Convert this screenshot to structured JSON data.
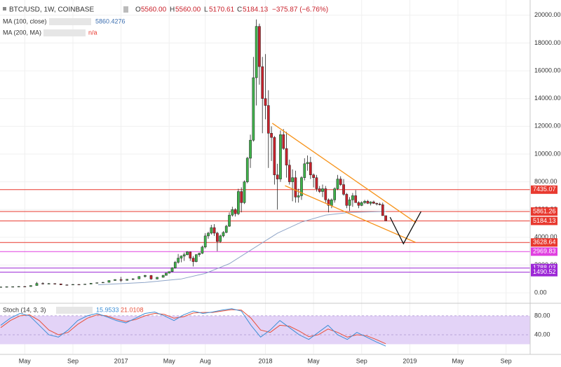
{
  "chart_data": {
    "type": "candlestick",
    "header": {
      "symbol": "BTC/USD, 1W, COINBASE",
      "o_label": "O",
      "o": "5560.00",
      "h_label": "H",
      "h": "5560.00",
      "l_label": "L",
      "l": "5170.61",
      "c_label": "C",
      "c": "5184.13",
      "change": "−375.87 (−6.76%)"
    },
    "xlim": [
      2,
      46
    ],
    "ylim": [
      -700,
      21100
    ],
    "xticks": [
      {
        "value": 4,
        "label": "May"
      },
      {
        "value": 8,
        "label": "Sep"
      },
      {
        "value": 12,
        "label": "2017"
      },
      {
        "value": 16,
        "label": "May"
      },
      {
        "value": 19,
        "label": "Aug"
      },
      {
        "value": 24,
        "label": "2018"
      },
      {
        "value": 28,
        "label": "May"
      },
      {
        "value": 32,
        "label": "Sep"
      },
      {
        "value": 36,
        "label": "2019"
      },
      {
        "value": 40,
        "label": "May"
      },
      {
        "value": 44,
        "label": "Sep"
      }
    ],
    "yticks": [
      {
        "value": 0,
        "label": "0.00"
      },
      {
        "value": 2000,
        "label": "2000.00"
      },
      {
        "value": 4000,
        "label": "4000.00"
      },
      {
        "value": 6000,
        "label": "6000.00"
      },
      {
        "value": 8000,
        "label": "8000.00"
      },
      {
        "value": 10000,
        "label": "10000.00"
      },
      {
        "value": 12000,
        "label": "12000.00"
      },
      {
        "value": 14000,
        "label": "14000.00"
      },
      {
        "value": 16000,
        "label": "16000.00"
      },
      {
        "value": 18000,
        "label": "18000.00"
      },
      {
        "value": 20000,
        "label": "20000.00"
      }
    ],
    "grid": true,
    "up_color": "#3fb14a",
    "down_color": "#c9222c",
    "candles": [
      {
        "x": 2.0,
        "o": 420,
        "h": 440,
        "l": 410,
        "c": 430
      },
      {
        "x": 2.5,
        "o": 430,
        "h": 450,
        "l": 420,
        "c": 445
      },
      {
        "x": 3.0,
        "o": 445,
        "h": 460,
        "l": 430,
        "c": 450
      },
      {
        "x": 3.5,
        "o": 450,
        "h": 470,
        "l": 440,
        "c": 460
      },
      {
        "x": 4.0,
        "o": 460,
        "h": 480,
        "l": 440,
        "c": 455
      },
      {
        "x": 4.5,
        "o": 455,
        "h": 540,
        "l": 450,
        "c": 530
      },
      {
        "x": 5.0,
        "o": 530,
        "h": 780,
        "l": 520,
        "c": 680
      },
      {
        "x": 5.5,
        "o": 680,
        "h": 760,
        "l": 600,
        "c": 650
      },
      {
        "x": 6.0,
        "o": 650,
        "h": 700,
        "l": 620,
        "c": 670
      },
      {
        "x": 6.5,
        "o": 670,
        "h": 680,
        "l": 600,
        "c": 650
      },
      {
        "x": 7.0,
        "o": 650,
        "h": 660,
        "l": 560,
        "c": 580
      },
      {
        "x": 7.5,
        "o": 580,
        "h": 600,
        "l": 560,
        "c": 575
      },
      {
        "x": 8.0,
        "o": 575,
        "h": 620,
        "l": 570,
        "c": 610
      },
      {
        "x": 8.5,
        "o": 610,
        "h": 620,
        "l": 590,
        "c": 605
      },
      {
        "x": 9.0,
        "o": 605,
        "h": 640,
        "l": 600,
        "c": 630
      },
      {
        "x": 9.5,
        "o": 630,
        "h": 700,
        "l": 620,
        "c": 690
      },
      {
        "x": 10.0,
        "o": 690,
        "h": 740,
        "l": 680,
        "c": 730
      },
      {
        "x": 10.5,
        "o": 730,
        "h": 780,
        "l": 720,
        "c": 760
      },
      {
        "x": 11.0,
        "o": 760,
        "h": 900,
        "l": 740,
        "c": 890
      },
      {
        "x": 11.5,
        "o": 890,
        "h": 980,
        "l": 880,
        "c": 960
      },
      {
        "x": 12.0,
        "o": 960,
        "h": 1150,
        "l": 780,
        "c": 900
      },
      {
        "x": 12.5,
        "o": 900,
        "h": 1000,
        "l": 880,
        "c": 980
      },
      {
        "x": 13.0,
        "o": 980,
        "h": 1050,
        "l": 920,
        "c": 1010
      },
      {
        "x": 13.5,
        "o": 1010,
        "h": 1200,
        "l": 990,
        "c": 1180
      },
      {
        "x": 14.0,
        "o": 1180,
        "h": 1300,
        "l": 1100,
        "c": 1250
      },
      {
        "x": 14.5,
        "o": 1250,
        "h": 1280,
        "l": 950,
        "c": 1000
      },
      {
        "x": 15.0,
        "o": 1000,
        "h": 1150,
        "l": 980,
        "c": 1120
      },
      {
        "x": 15.5,
        "o": 1120,
        "h": 1300,
        "l": 1100,
        "c": 1260
      },
      {
        "x": 15.75,
        "o": 1260,
        "h": 1450,
        "l": 1240,
        "c": 1420
      },
      {
        "x": 16.0,
        "o": 1420,
        "h": 1550,
        "l": 1400,
        "c": 1530
      },
      {
        "x": 16.25,
        "o": 1530,
        "h": 1850,
        "l": 1500,
        "c": 1800
      },
      {
        "x": 16.5,
        "o": 1800,
        "h": 2300,
        "l": 1750,
        "c": 2200
      },
      {
        "x": 16.75,
        "o": 2200,
        "h": 2800,
        "l": 2100,
        "c": 2500
      },
      {
        "x": 17.0,
        "o": 2500,
        "h": 2700,
        "l": 2200,
        "c": 2650
      },
      {
        "x": 17.25,
        "o": 2650,
        "h": 2900,
        "l": 2300,
        "c": 2750
      },
      {
        "x": 17.5,
        "o": 2750,
        "h": 3000,
        "l": 2700,
        "c": 2950
      },
      {
        "x": 17.75,
        "o": 2950,
        "h": 2980,
        "l": 2300,
        "c": 2500
      },
      {
        "x": 18.0,
        "o": 2500,
        "h": 2650,
        "l": 1900,
        "c": 2250
      },
      {
        "x": 18.25,
        "o": 2250,
        "h": 2800,
        "l": 2200,
        "c": 2750
      },
      {
        "x": 18.5,
        "o": 2750,
        "h": 2900,
        "l": 2600,
        "c": 2850
      },
      {
        "x": 18.75,
        "o": 2850,
        "h": 3400,
        "l": 2800,
        "c": 3300
      },
      {
        "x": 19.0,
        "o": 3300,
        "h": 4300,
        "l": 3200,
        "c": 4100
      },
      {
        "x": 19.25,
        "o": 4100,
        "h": 4400,
        "l": 3900,
        "c": 4300
      },
      {
        "x": 19.5,
        "o": 4300,
        "h": 4900,
        "l": 4200,
        "c": 4700
      },
      {
        "x": 19.75,
        "o": 4700,
        "h": 4950,
        "l": 4100,
        "c": 4300
      },
      {
        "x": 20.0,
        "o": 4300,
        "h": 4400,
        "l": 3000,
        "c": 3700
      },
      {
        "x": 20.25,
        "o": 3700,
        "h": 4200,
        "l": 3600,
        "c": 4100
      },
      {
        "x": 20.5,
        "o": 4100,
        "h": 4450,
        "l": 4000,
        "c": 4350
      },
      {
        "x": 20.75,
        "o": 4350,
        "h": 4900,
        "l": 4300,
        "c": 4800
      },
      {
        "x": 21.0,
        "o": 4800,
        "h": 5800,
        "l": 4750,
        "c": 5600
      },
      {
        "x": 21.25,
        "o": 5600,
        "h": 6200,
        "l": 5500,
        "c": 6000
      },
      {
        "x": 21.5,
        "o": 6000,
        "h": 6100,
        "l": 5500,
        "c": 5700
      },
      {
        "x": 21.75,
        "o": 5700,
        "h": 7500,
        "l": 5600,
        "c": 7300
      },
      {
        "x": 22.0,
        "o": 7300,
        "h": 7600,
        "l": 5800,
        "c": 6500
      },
      {
        "x": 22.25,
        "o": 6500,
        "h": 8100,
        "l": 6400,
        "c": 8000
      },
      {
        "x": 22.5,
        "o": 8000,
        "h": 9800,
        "l": 7900,
        "c": 9700
      },
      {
        "x": 22.75,
        "o": 9700,
        "h": 11400,
        "l": 9000,
        "c": 11000
      },
      {
        "x": 23.0,
        "o": 11000,
        "h": 17000,
        "l": 10900,
        "c": 15500
      },
      {
        "x": 23.25,
        "o": 15500,
        "h": 19700,
        "l": 13500,
        "c": 19200
      },
      {
        "x": 23.5,
        "o": 19200,
        "h": 19400,
        "l": 15000,
        "c": 16300
      },
      {
        "x": 23.75,
        "o": 16300,
        "h": 17000,
        "l": 11500,
        "c": 14000
      },
      {
        "x": 24.0,
        "o": 14000,
        "h": 17200,
        "l": 12500,
        "c": 13500
      },
      {
        "x": 24.25,
        "o": 13500,
        "h": 14600,
        "l": 9000,
        "c": 11500
      },
      {
        "x": 24.5,
        "o": 11500,
        "h": 12000,
        "l": 9500,
        "c": 11200
      },
      {
        "x": 24.75,
        "o": 11200,
        "h": 11300,
        "l": 7800,
        "c": 8500
      },
      {
        "x": 25.0,
        "o": 8500,
        "h": 9300,
        "l": 6000,
        "c": 8200
      },
      {
        "x": 25.25,
        "o": 8200,
        "h": 11700,
        "l": 8000,
        "c": 11400
      },
      {
        "x": 25.5,
        "o": 11400,
        "h": 11800,
        "l": 10300,
        "c": 10400
      },
      {
        "x": 25.75,
        "o": 10400,
        "h": 11600,
        "l": 8300,
        "c": 9200
      },
      {
        "x": 26.0,
        "o": 9200,
        "h": 9600,
        "l": 7800,
        "c": 8000
      },
      {
        "x": 26.25,
        "o": 8000,
        "h": 8900,
        "l": 6600,
        "c": 8300
      },
      {
        "x": 26.5,
        "o": 8300,
        "h": 8800,
        "l": 6500,
        "c": 6900
      },
      {
        "x": 26.75,
        "o": 6900,
        "h": 7500,
        "l": 6500,
        "c": 7000
      },
      {
        "x": 27.0,
        "o": 7000,
        "h": 8400,
        "l": 6700,
        "c": 8300
      },
      {
        "x": 27.25,
        "o": 8300,
        "h": 9700,
        "l": 8100,
        "c": 9300
      },
      {
        "x": 27.5,
        "o": 9300,
        "h": 9900,
        "l": 8800,
        "c": 9400
      },
      {
        "x": 27.75,
        "o": 9400,
        "h": 9800,
        "l": 8200,
        "c": 8500
      },
      {
        "x": 28.0,
        "o": 8500,
        "h": 8600,
        "l": 7600,
        "c": 8300
      },
      {
        "x": 28.25,
        "o": 8300,
        "h": 8500,
        "l": 7300,
        "c": 7500
      },
      {
        "x": 28.5,
        "o": 7500,
        "h": 7700,
        "l": 7200,
        "c": 7300
      },
      {
        "x": 28.75,
        "o": 7300,
        "h": 7800,
        "l": 6900,
        "c": 7500
      },
      {
        "x": 29.0,
        "o": 7500,
        "h": 7700,
        "l": 6500,
        "c": 6700
      },
      {
        "x": 29.25,
        "o": 6700,
        "h": 6800,
        "l": 5800,
        "c": 6300
      },
      {
        "x": 29.5,
        "o": 6300,
        "h": 6800,
        "l": 6100,
        "c": 6700
      },
      {
        "x": 29.75,
        "o": 6700,
        "h": 7600,
        "l": 6500,
        "c": 7500
      },
      {
        "x": 30.0,
        "o": 7500,
        "h": 8500,
        "l": 7400,
        "c": 8200
      },
      {
        "x": 30.25,
        "o": 8200,
        "h": 8400,
        "l": 7700,
        "c": 7800
      },
      {
        "x": 30.5,
        "o": 7800,
        "h": 8200,
        "l": 7000,
        "c": 7100
      },
      {
        "x": 30.75,
        "o": 7100,
        "h": 7200,
        "l": 6100,
        "c": 6300
      },
      {
        "x": 31.0,
        "o": 6300,
        "h": 6900,
        "l": 5900,
        "c": 6700
      },
      {
        "x": 31.25,
        "o": 6700,
        "h": 7200,
        "l": 6200,
        "c": 7000
      },
      {
        "x": 31.5,
        "o": 7000,
        "h": 7400,
        "l": 6500,
        "c": 6500
      },
      {
        "x": 31.75,
        "o": 6500,
        "h": 6600,
        "l": 6100,
        "c": 6300
      },
      {
        "x": 32.0,
        "o": 6300,
        "h": 6600,
        "l": 6250,
        "c": 6500
      },
      {
        "x": 32.25,
        "o": 6500,
        "h": 6700,
        "l": 6400,
        "c": 6600
      },
      {
        "x": 32.5,
        "o": 6600,
        "h": 6700,
        "l": 6400,
        "c": 6450
      },
      {
        "x": 32.75,
        "o": 6450,
        "h": 6600,
        "l": 6300,
        "c": 6550
      },
      {
        "x": 33.0,
        "o": 6550,
        "h": 6650,
        "l": 6400,
        "c": 6450
      },
      {
        "x": 33.25,
        "o": 6450,
        "h": 6500,
        "l": 6300,
        "c": 6400
      },
      {
        "x": 33.5,
        "o": 6400,
        "h": 6500,
        "l": 6300,
        "c": 6350
      },
      {
        "x": 33.75,
        "o": 6350,
        "h": 6500,
        "l": 5560,
        "c": 5560
      },
      {
        "x": 34.0,
        "o": 5560.0,
        "h": 5560.0,
        "l": 5170.61,
        "c": 5184.13
      }
    ],
    "ma100": {
      "name": "MA (100, close)",
      "value_label": "5860.4276",
      "color": "#8fa5c8",
      "x": [
        10.1,
        14,
        17,
        19,
        21,
        23,
        25,
        27,
        29,
        31,
        34
      ],
      "values": [
        580,
        750,
        1000,
        1400,
        2100,
        3200,
        4300,
        5100,
        5600,
        5800,
        5860.4276
      ]
    },
    "ma200": {
      "name": "MA (200, MA)",
      "value_label": "n/a"
    },
    "levels": [
      {
        "value": 7435.07,
        "color": "#e8392f"
      },
      {
        "value": 5861.26,
        "color": "#e8392f"
      },
      {
        "value": 5184.13,
        "color": "#e8392f"
      },
      {
        "value": 3628.64,
        "color": "#e8392f"
      },
      {
        "value": 2969.83,
        "color": "#e040e0"
      },
      {
        "value": 1788.03,
        "color": "#9c27d6"
      },
      {
        "value": 1490.52,
        "color": "#9c27d6"
      }
    ],
    "drawings": [
      {
        "color": "#f7931a",
        "x": [
          24.57,
          36.52
        ],
        "values": [
          12220,
          5050
        ]
      },
      {
        "color": "#f7931a",
        "x": [
          25.63,
          36.47
        ],
        "values": [
          7720,
          3640
        ]
      },
      {
        "color": "#111111",
        "x": [
          34.36,
          35.47,
          36.93
        ],
        "values": [
          5450,
          3540,
          5860
        ]
      }
    ],
    "stoch": {
      "name": "Stoch (14, 3, 3)",
      "k_label": "15.9533",
      "d_label": "21.0108",
      "k_color": "#3d8fd6",
      "d_color": "#e8503a",
      "ylim": [
        0,
        105
      ],
      "yticks": [
        {
          "value": 80,
          "label": "80.00"
        },
        {
          "value": 40,
          "label": "40.00"
        }
      ],
      "band": [
        20,
        80
      ],
      "x": [
        2,
        2.8,
        3.6,
        4.4,
        5.2,
        6,
        6.8,
        7.6,
        8.4,
        9.2,
        10,
        10.8,
        11.6,
        12.4,
        13.2,
        14,
        14.8,
        15.6,
        16.4,
        17.2,
        18,
        18.8,
        19.6,
        20.4,
        21.2,
        22,
        22.8,
        23.6,
        24.4,
        25.2,
        26,
        26.8,
        27.6,
        28.4,
        29.2,
        30,
        30.8,
        31.6,
        32.4,
        33.2,
        34
      ],
      "k": [
        60,
        75,
        85,
        80,
        60,
        40,
        35,
        50,
        70,
        80,
        85,
        78,
        70,
        65,
        75,
        85,
        88,
        80,
        70,
        82,
        90,
        85,
        88,
        92,
        95,
        90,
        60,
        35,
        50,
        70,
        55,
        40,
        30,
        45,
        60,
        40,
        30,
        45,
        35,
        25,
        15.9533
      ],
      "d": [
        55,
        70,
        80,
        82,
        70,
        50,
        40,
        45,
        62,
        75,
        82,
        80,
        73,
        68,
        72,
        80,
        85,
        83,
        75,
        78,
        86,
        87,
        87,
        90,
        93,
        92,
        75,
        50,
        45,
        60,
        58,
        48,
        36,
        40,
        52,
        45,
        35,
        40,
        38,
        30,
        21.0108
      ]
    }
  }
}
